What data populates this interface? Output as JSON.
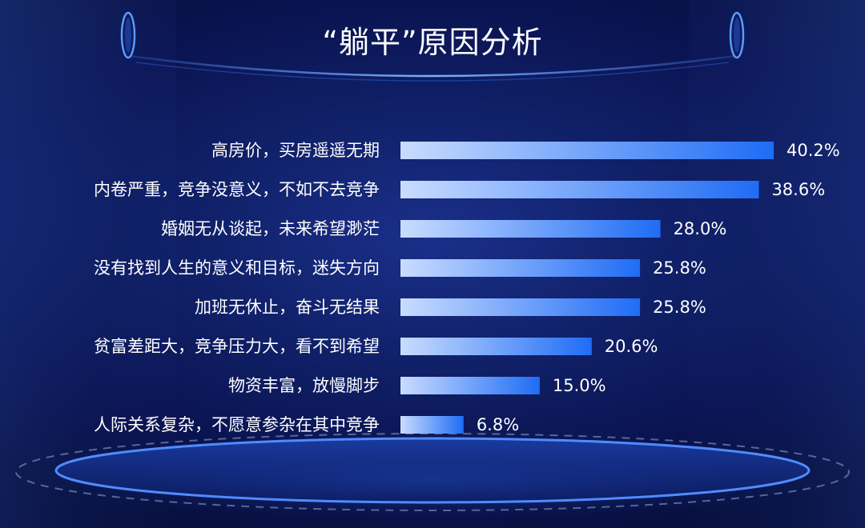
{
  "title": "“躺平”原因分析",
  "colors": {
    "bar_start": "#c9dcff",
    "bar_end": "#1f6cf5",
    "background": "#0b1450",
    "text": "#ffffff"
  },
  "chart_data": {
    "type": "bar",
    "orientation": "horizontal",
    "title": "“躺平”原因分析",
    "categories": [
      "高房价，买房遥遥无期",
      "内卷严重，竞争没意义，不如不去竞争",
      "婚姻无从谈起，未来希望渺茫",
      "没有找到人生的意义和目标，迷失方向",
      "加班无休止，奋斗无结果",
      "贫富差距大，竞争压力大，看不到希望",
      "物资丰富，放慢脚步",
      "人际关系复杂，不愿意参杂在其中竞争"
    ],
    "values": [
      40.2,
      38.6,
      28.0,
      25.8,
      25.8,
      20.6,
      15.0,
      6.8
    ],
    "value_labels": [
      "40.2%",
      "38.6%",
      "28.0%",
      "25.8%",
      "25.8%",
      "20.6%",
      "15.0%",
      "6.8%"
    ],
    "unit": "%",
    "xlim": [
      0,
      45
    ],
    "grid": false,
    "legend": "none"
  }
}
